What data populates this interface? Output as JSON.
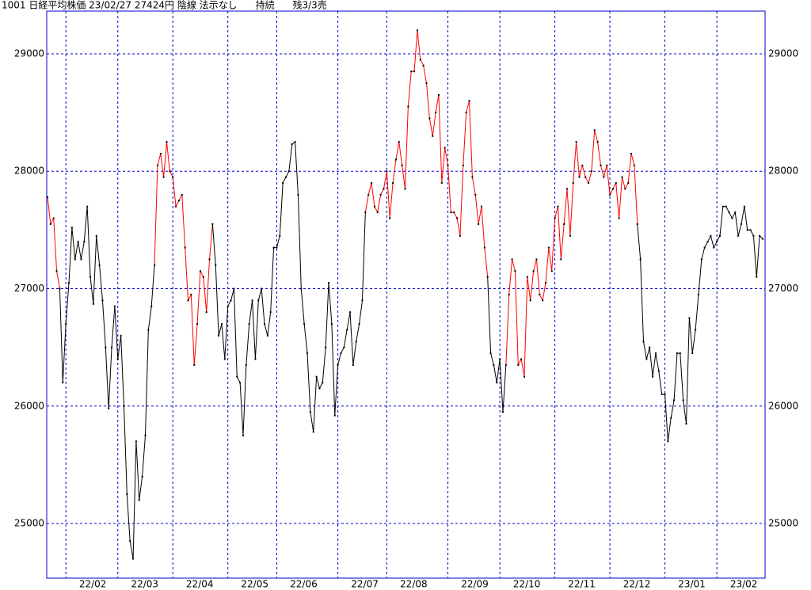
{
  "chart_data": {
    "type": "line",
    "title": "1001 日経平均株価 23/02/27 27424円 陰線 法示なし      持続      残3/3売",
    "categories": [
      null,
      null,
      null,
      null,
      null,
      null,
      "22/02",
      null,
      null,
      null,
      null,
      null,
      null,
      null,
      null,
      null,
      null,
      null,
      null,
      null,
      null,
      null,
      null,
      "22/03",
      null,
      null,
      null,
      null,
      null,
      null,
      null,
      null,
      null,
      null,
      null,
      null,
      null,
      null,
      null,
      null,
      null,
      "22/04",
      null,
      null,
      null,
      null,
      null,
      null,
      null,
      null,
      null,
      null,
      null,
      null,
      null,
      null,
      null,
      null,
      null,
      "22/05",
      null,
      null,
      null,
      null,
      null,
      null,
      null,
      null,
      null,
      null,
      null,
      null,
      null,
      null,
      null,
      "22/06",
      null,
      null,
      null,
      null,
      null,
      null,
      null,
      null,
      null,
      null,
      null,
      null,
      null,
      null,
      null,
      null,
      null,
      null,
      null,
      "22/07",
      null,
      null,
      null,
      null,
      null,
      null,
      null,
      null,
      null,
      null,
      null,
      null,
      null,
      null,
      null,
      "22/08",
      null,
      null,
      null,
      null,
      null,
      null,
      null,
      null,
      null,
      null,
      null,
      null,
      null,
      null,
      null,
      null,
      null,
      null,
      null,
      "22/09",
      null,
      null,
      null,
      null,
      null,
      null,
      null,
      null,
      null,
      null,
      null,
      null,
      null,
      null,
      null,
      null,
      "22/10",
      null,
      null,
      null,
      null,
      null,
      null,
      null,
      null,
      null,
      null,
      null,
      null,
      null,
      null,
      null,
      null,
      null,
      "22/11",
      null,
      null,
      null,
      null,
      null,
      null,
      null,
      null,
      null,
      null,
      null,
      null,
      null,
      null,
      null,
      null,
      null,
      "22/12",
      null,
      null,
      null,
      null,
      null,
      null,
      null,
      null,
      null,
      null,
      null,
      null,
      null,
      null,
      null,
      null,
      null,
      "23/01",
      null,
      null,
      null,
      null,
      null,
      null,
      null,
      null,
      null,
      null,
      null,
      null,
      null,
      null,
      null,
      null,
      "23/02",
      null,
      null,
      null,
      null,
      null,
      null,
      null,
      null,
      null,
      null,
      null,
      null,
      null,
      null,
      null
    ],
    "values": [
      27780,
      27550,
      27600,
      27150,
      27000,
      26200,
      26700,
      27050,
      27520,
      27250,
      27400,
      27250,
      27400,
      27700,
      27100,
      26870,
      27450,
      27200,
      26900,
      26500,
      25980,
      26500,
      26850,
      26400,
      26600,
      26000,
      25250,
      24850,
      24700,
      25700,
      25200,
      25400,
      25750,
      26650,
      26850,
      27200,
      28050,
      28150,
      27950,
      28250,
      28000,
      27950,
      27700,
      27750,
      27800,
      27350,
      26900,
      26950,
      26350,
      26700,
      27150,
      27100,
      26800,
      27250,
      27550,
      27200,
      26600,
      26700,
      26400,
      26850,
      26900,
      27000,
      26250,
      26200,
      25750,
      26350,
      26700,
      26900,
      26400,
      26900,
      27000,
      26700,
      26600,
      26800,
      27350,
      27350,
      27450,
      27900,
      27950,
      28000,
      28230,
      28250,
      27800,
      27000,
      26700,
      26450,
      25950,
      25780,
      26250,
      26150,
      26200,
      26500,
      27050,
      26700,
      25920,
      26350,
      26450,
      26500,
      26650,
      26800,
      26350,
      26550,
      26700,
      26900,
      27650,
      27800,
      27900,
      27700,
      27650,
      27800,
      27850,
      28000,
      27600,
      27900,
      28100,
      28250,
      28050,
      27850,
      28550,
      28850,
      28850,
      29200,
      28950,
      28900,
      28750,
      28450,
      28300,
      28500,
      28650,
      27900,
      28200,
      28050,
      27650,
      27650,
      27600,
      27450,
      28050,
      28500,
      28600,
      27950,
      27800,
      27550,
      27700,
      27350,
      27100,
      26450,
      26350,
      26200,
      26400,
      25950,
      26350,
      26950,
      27250,
      27150,
      26350,
      26400,
      26250,
      27100,
      26900,
      27150,
      27250,
      26950,
      26900,
      27050,
      27350,
      27150,
      27600,
      27700,
      27250,
      27550,
      27850,
      27450,
      27900,
      28250,
      27950,
      28050,
      27950,
      27900,
      28000,
      28350,
      28250,
      28050,
      27950,
      28050,
      27800,
      27850,
      27900,
      27600,
      27950,
      27850,
      27900,
      28150,
      28050,
      27550,
      27250,
      26550,
      26400,
      26500,
      26250,
      26450,
      26300,
      26100,
      26100,
      25700,
      25900,
      26050,
      26450,
      26450,
      26050,
      25850,
      26750,
      26450,
      26650,
      26950,
      27250,
      27350,
      27400,
      27450,
      27350,
      27400,
      27450,
      27700,
      27700,
      27650,
      27600,
      27650,
      27450,
      27550,
      27700,
      27500,
      27500,
      27450,
      27100,
      27450,
      27424
    ],
    "color": "#000000",
    "signal_color": "#ff0000",
    "signal_ranges": [
      [
        0,
        4
      ],
      [
        35,
        54
      ],
      [
        104,
        144
      ],
      [
        150,
        193
      ]
    ],
    "ylim": [
      24535,
      29364
    ],
    "yticks": [
      25000,
      26000,
      27000,
      28000,
      29000
    ],
    "grid": true
  }
}
